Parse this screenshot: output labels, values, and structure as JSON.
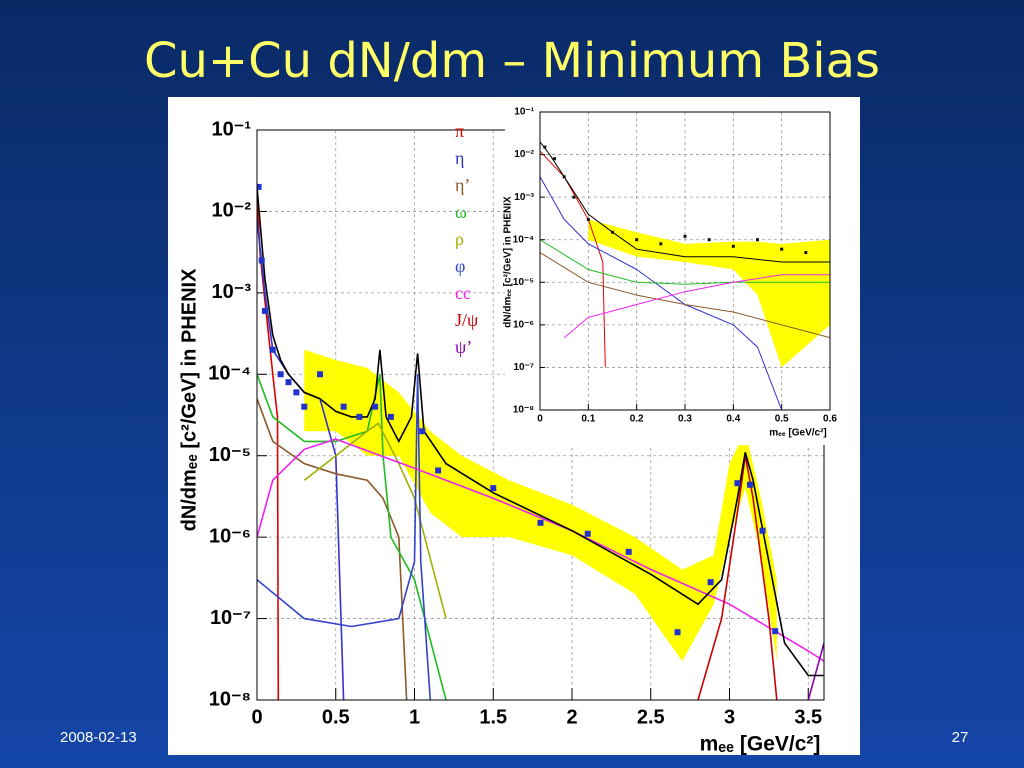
{
  "slide": {
    "title": "Cu+Cu dN/dm – Minimum Bias",
    "date": "2008-02-13",
    "page": "27"
  },
  "chart_data": [
    {
      "type": "line",
      "ylog": true,
      "grid": true,
      "x_label": "mₑₑ [GeV/c²]",
      "y_label": "dN/dmₑₑ [c²/GeV] in PHENIX",
      "xlim": [
        0,
        3.6
      ],
      "ylim": [
        1e-08,
        0.1
      ],
      "xticks": [
        0,
        0.5,
        1,
        1.5,
        2,
        2.5,
        3,
        3.5
      ],
      "yticks": [
        {
          "value": 1e-08,
          "label": "10⁻⁸"
        },
        {
          "value": 1e-07,
          "label": "10⁻⁷"
        },
        {
          "value": 1e-06,
          "label": "10⁻⁶"
        },
        {
          "value": 1e-05,
          "label": "10⁻⁵"
        },
        {
          "value": 0.0001,
          "label": "10⁻⁴"
        },
        {
          "value": 0.001,
          "label": "10⁻³"
        },
        {
          "value": 0.01,
          "label": "10⁻²"
        },
        {
          "value": 0.1,
          "label": "10⁻¹"
        }
      ],
      "band": {
        "color": "#ffff00",
        "x": [
          0.3,
          0.5,
          0.7,
          0.9,
          1.1,
          1.3,
          1.6,
          2.0,
          2.4,
          2.7,
          2.9,
          3.0,
          3.1,
          3.2,
          3.3
        ],
        "lower": [
          2e-05,
          2e-05,
          1e-05,
          1e-05,
          2e-06,
          1e-06,
          1e-06,
          6e-07,
          2e-07,
          3e-08,
          1.5e-07,
          1e-06,
          4e-06,
          6e-07,
          3e-08
        ],
        "upper": [
          0.0002,
          0.00015,
          0.00012,
          6e-05,
          2e-05,
          1e-05,
          5e-06,
          2.5e-06,
          1e-06,
          4e-07,
          6e-07,
          8e-06,
          2e-05,
          3e-06,
          3e-07
        ]
      },
      "series": [
        {
          "name": "π",
          "color": "#e00000",
          "x": [
            0,
            0.02,
            0.05,
            0.1,
            0.13,
            0.135
          ],
          "values": [
            0.015,
            0.003,
            0.0008,
            0.0001,
            3e-05,
            1e-08
          ]
        },
        {
          "name": "η",
          "color": "#3333cc",
          "x": [
            0,
            0.05,
            0.1,
            0.2,
            0.3,
            0.4,
            0.5,
            0.55
          ],
          "values": [
            0.008,
            0.001,
            0.0002,
            0.0001,
            6e-05,
            5e-05,
            1e-05,
            1e-08
          ]
        },
        {
          "name": "η’",
          "color": "#8b5a2b",
          "x": [
            0,
            0.1,
            0.3,
            0.5,
            0.7,
            0.8,
            0.9,
            0.95
          ],
          "values": [
            5e-05,
            1.5e-05,
            8e-06,
            6e-06,
            5e-06,
            3e-06,
            1e-06,
            1e-08
          ]
        },
        {
          "name": "ω",
          "color": "#22bb22",
          "x": [
            0,
            0.1,
            0.3,
            0.5,
            0.7,
            0.78,
            0.8,
            0.85,
            1.0,
            1.2
          ],
          "values": [
            0.0001,
            3e-05,
            1.5e-05,
            1.5e-05,
            2e-05,
            0.0001,
            1e-05,
            1e-06,
            3e-07,
            1e-08
          ]
        },
        {
          "name": "ρ",
          "color": "#a0b000",
          "x": [
            0.3,
            0.5,
            0.7,
            0.77,
            0.9,
            1.0,
            1.2
          ],
          "values": [
            5e-06,
            1e-05,
            2e-05,
            2.5e-05,
            8e-06,
            3e-06,
            1e-07
          ]
        },
        {
          "name": "φ",
          "color": "#3344cc",
          "x": [
            0,
            0.3,
            0.6,
            0.9,
            1.0,
            1.02,
            1.04,
            1.1
          ],
          "values": [
            3e-07,
            1e-07,
            8e-08,
            1e-07,
            5e-07,
            0.0001,
            5e-07,
            1e-08
          ]
        },
        {
          "name": "cc",
          "color": "#ee22ee",
          "x": [
            0,
            0.1,
            0.3,
            0.5,
            1.0,
            1.5,
            2.0,
            2.5,
            3.0,
            3.5,
            3.6
          ],
          "values": [
            1e-06,
            5e-06,
            1.2e-05,
            1.6e-05,
            7e-06,
            3e-06,
            1.2e-06,
            4e-07,
            1.5e-07,
            4e-08,
            3e-08
          ]
        },
        {
          "name": "J/ψ",
          "color": "#cc0000",
          "x": [
            2.8,
            2.95,
            3.05,
            3.1,
            3.15,
            3.25,
            3.3
          ],
          "values": [
            1e-08,
            1e-07,
            2e-06,
            1e-05,
            3e-06,
            1e-07,
            1e-08
          ]
        },
        {
          "name": "ψ’",
          "color": "#8800aa",
          "x": [
            3.5,
            3.6
          ],
          "values": [
            1e-08,
            5e-08
          ]
        },
        {
          "color": "#000000",
          "x": [
            0,
            0.05,
            0.1,
            0.15,
            0.2,
            0.3,
            0.4,
            0.5,
            0.6,
            0.7,
            0.75,
            0.78,
            0.82,
            0.9,
            0.98,
            1.02,
            1.06,
            1.2,
            1.5,
            2.0,
            2.5,
            2.8,
            2.95,
            3.05,
            3.1,
            3.15,
            3.25,
            3.35,
            3.5,
            3.6
          ],
          "values": [
            0.02,
            0.0015,
            0.0003,
            0.00015,
            0.0001,
            6e-05,
            5e-05,
            3.5e-05,
            3e-05,
            3e-05,
            5e-05,
            0.0002,
            3e-05,
            1.5e-05,
            3e-05,
            0.00018,
            2e-05,
            8e-06,
            3.5e-06,
            1.2e-06,
            3.5e-07,
            1.5e-07,
            3e-07,
            3e-06,
            1.1e-05,
            5e-06,
            5e-07,
            5e-08,
            2e-08,
            2e-08
          ]
        },
        {
          "color": "#2233cc",
          "marker": "square",
          "x": [
            0.01,
            0.03,
            0.05,
            0.1,
            0.15,
            0.2,
            0.25,
            0.3,
            0.4,
            0.55,
            0.65,
            0.75,
            0.85,
            1.05,
            1.15,
            1.5,
            1.8,
            2.1,
            2.36,
            2.67,
            2.88,
            3.05,
            3.13,
            3.21,
            3.29
          ],
          "values": [
            0.02,
            0.0025,
            0.0006,
            0.0002,
            0.0001,
            8e-05,
            6e-05,
            4e-05,
            0.0001,
            4e-05,
            3e-05,
            4e-05,
            3e-05,
            2e-05,
            6.6e-06,
            4e-06,
            1.5e-06,
            1.1e-06,
            6.6e-07,
            6.8e-08,
            2.8e-07,
            4.6e-06,
            4.4e-06,
            1.2e-06,
            7e-08
          ]
        }
      ]
    },
    {
      "type": "line",
      "ylog": true,
      "grid": true,
      "x_label": "mₑₑ [GeV/c²]",
      "y_label": "dN/dmₑₑ [c²/GeV] in PHENIX",
      "xlim": [
        0,
        0.6
      ],
      "ylim": [
        1e-08,
        0.1
      ],
      "xticks": [
        0,
        0.1,
        0.2,
        0.3,
        0.4,
        0.5,
        0.6
      ],
      "yticks": [
        {
          "value": 1e-08,
          "label": "10⁻⁸"
        },
        {
          "value": 1e-07,
          "label": "10⁻⁷"
        },
        {
          "value": 1e-06,
          "label": "10⁻⁶"
        },
        {
          "value": 1e-05,
          "label": "10⁻⁵"
        },
        {
          "value": 0.0001,
          "label": "10⁻⁴"
        },
        {
          "value": 0.001,
          "label": "10⁻³"
        },
        {
          "value": 0.01,
          "label": "10⁻²"
        },
        {
          "value": 0.1,
          "label": "10⁻¹"
        }
      ],
      "band": {
        "color": "#ffff00",
        "x": [
          0.1,
          0.2,
          0.3,
          0.4,
          0.45,
          0.5,
          0.6
        ],
        "lower": [
          0.0001,
          4e-05,
          3e-05,
          2e-05,
          5e-06,
          1e-07,
          1e-06
        ],
        "upper": [
          0.0003,
          0.00015,
          8e-05,
          9e-05,
          9e-05,
          8e-05,
          0.0001
        ]
      },
      "series": [
        {
          "color": "#e00000",
          "x": [
            0,
            0.05,
            0.1,
            0.13,
            0.135
          ],
          "values": [
            0.012,
            0.003,
            0.0003,
            3e-05,
            1e-07
          ]
        },
        {
          "color": "#3333cc",
          "x": [
            0,
            0.05,
            0.1,
            0.2,
            0.3,
            0.4,
            0.45,
            0.5
          ],
          "values": [
            0.003,
            0.0003,
            8e-05,
            2e-05,
            3e-06,
            1e-06,
            3e-07,
            1e-08
          ]
        },
        {
          "color": "#8b5a2b",
          "x": [
            0,
            0.1,
            0.2,
            0.3,
            0.4,
            0.5,
            0.6
          ],
          "values": [
            5e-05,
            1e-05,
            5e-06,
            3e-06,
            2e-06,
            1e-06,
            5e-07
          ]
        },
        {
          "color": "#22bb22",
          "x": [
            0,
            0.1,
            0.2,
            0.3,
            0.4,
            0.5,
            0.6
          ],
          "values": [
            0.0001,
            2e-05,
            1e-05,
            9e-06,
            1e-05,
            1e-05,
            1e-05
          ]
        },
        {
          "color": "#ee22ee",
          "x": [
            0.05,
            0.1,
            0.2,
            0.3,
            0.4,
            0.5,
            0.6
          ],
          "values": [
            5e-07,
            1.5e-06,
            3e-06,
            6e-06,
            1e-05,
            1.5e-05,
            1.5e-05
          ]
        },
        {
          "color": "#000000",
          "x": [
            0,
            0.02,
            0.05,
            0.1,
            0.15,
            0.2,
            0.3,
            0.4,
            0.5,
            0.6
          ],
          "values": [
            0.02,
            0.01,
            0.003,
            0.0004,
            0.00015,
            6e-05,
            4e-05,
            4e-05,
            3e-05,
            3e-05
          ]
        },
        {
          "color": "#111111",
          "marker": "square",
          "x": [
            0.01,
            0.03,
            0.05,
            0.07,
            0.1,
            0.15,
            0.2,
            0.25,
            0.3,
            0.35,
            0.4,
            0.45,
            0.5,
            0.55
          ],
          "values": [
            0.015,
            0.008,
            0.003,
            0.001,
            0.0003,
            0.00015,
            0.0001,
            8e-05,
            0.00012,
            0.0001,
            7e-05,
            0.0001,
            6e-05,
            5e-05
          ]
        }
      ]
    }
  ]
}
